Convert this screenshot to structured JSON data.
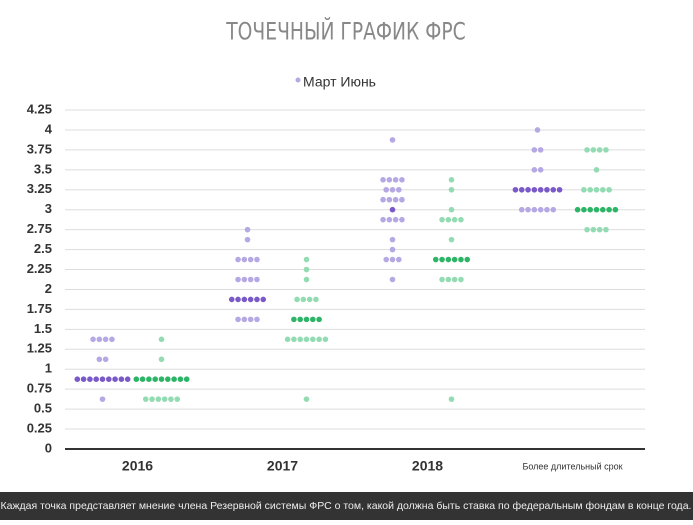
{
  "chart_data": {
    "type": "dot",
    "title": "ТОЧЕЧНЫЙ ГРАФИК ФРС",
    "categories": [
      "2016",
      "2017",
      "2018",
      "Более длительный срок"
    ],
    "ylim": [
      0,
      4.25
    ],
    "yticks": [
      0,
      0.25,
      0.5,
      0.75,
      1,
      1.25,
      1.5,
      1.75,
      2,
      2.25,
      2.5,
      2.75,
      3,
      3.25,
      3.5,
      3.75,
      4,
      4.25
    ],
    "grid": true,
    "legend_text": "Март Июнь",
    "series": [
      {
        "name": "Март",
        "color": "#b5a8e3",
        "median_color": "#7a5ac8",
        "medians": [
          0.875,
          1.875,
          3,
          3.25
        ],
        "dots": [
          [
            {
              "rate": 1.375,
              "count": 4
            },
            {
              "rate": 1.125,
              "count": 2
            },
            {
              "rate": 0.875,
              "count": 9
            },
            {
              "rate": 0.625,
              "count": 1
            }
          ],
          [
            {
              "rate": 2.75,
              "count": 1
            },
            {
              "rate": 2.625,
              "count": 1
            },
            {
              "rate": 2.375,
              "count": 4
            },
            {
              "rate": 2.125,
              "count": 4
            },
            {
              "rate": 1.875,
              "count": 6
            },
            {
              "rate": 1.625,
              "count": 4
            }
          ],
          [
            {
              "rate": 3.875,
              "count": 1
            },
            {
              "rate": 3.375,
              "count": 4
            },
            {
              "rate": 3.25,
              "count": 3
            },
            {
              "rate": 3.125,
              "count": 4
            },
            {
              "rate": 3,
              "count": 1
            },
            {
              "rate": 2.875,
              "count": 4
            },
            {
              "rate": 2.625,
              "count": 1
            },
            {
              "rate": 2.5,
              "count": 1
            },
            {
              "rate": 2.375,
              "count": 3
            },
            {
              "rate": 2.125,
              "count": 1
            }
          ],
          [
            {
              "rate": 4,
              "count": 1
            },
            {
              "rate": 3.75,
              "count": 2
            },
            {
              "rate": 3.5,
              "count": 2
            },
            {
              "rate": 3.25,
              "count": 8
            },
            {
              "rate": 3,
              "count": 6
            }
          ]
        ]
      },
      {
        "name": "Июнь",
        "color": "#93dbb3",
        "median_color": "#2db567",
        "medians": [
          0.875,
          1.625,
          2.375,
          3
        ],
        "dots": [
          [
            {
              "rate": 1.375,
              "count": 1
            },
            {
              "rate": 1.125,
              "count": 1
            },
            {
              "rate": 0.875,
              "count": 9
            },
            {
              "rate": 0.625,
              "count": 6
            }
          ],
          [
            {
              "rate": 2.375,
              "count": 1
            },
            {
              "rate": 2.25,
              "count": 1
            },
            {
              "rate": 2.125,
              "count": 1
            },
            {
              "rate": 1.875,
              "count": 4
            },
            {
              "rate": 1.625,
              "count": 5
            },
            {
              "rate": 1.375,
              "count": 7
            },
            {
              "rate": 0.625,
              "count": 1
            }
          ],
          [
            {
              "rate": 3.375,
              "count": 1
            },
            {
              "rate": 3.25,
              "count": 1
            },
            {
              "rate": 3,
              "count": 1
            },
            {
              "rate": 2.875,
              "count": 4
            },
            {
              "rate": 2.625,
              "count": 1
            },
            {
              "rate": 2.375,
              "count": 6
            },
            {
              "rate": 2.125,
              "count": 4
            },
            {
              "rate": 0.625,
              "count": 1
            }
          ],
          [
            {
              "rate": 3.75,
              "count": 4
            },
            {
              "rate": 3.5,
              "count": 1
            },
            {
              "rate": 3.25,
              "count": 5
            },
            {
              "rate": 3,
              "count": 7
            },
            {
              "rate": 2.75,
              "count": 4
            }
          ]
        ]
      }
    ],
    "footnote": "Каждая точка представляет мнение члена Резервной системы ФРС о том, какой должна быть ставка по федеральным фондам в конце года."
  }
}
